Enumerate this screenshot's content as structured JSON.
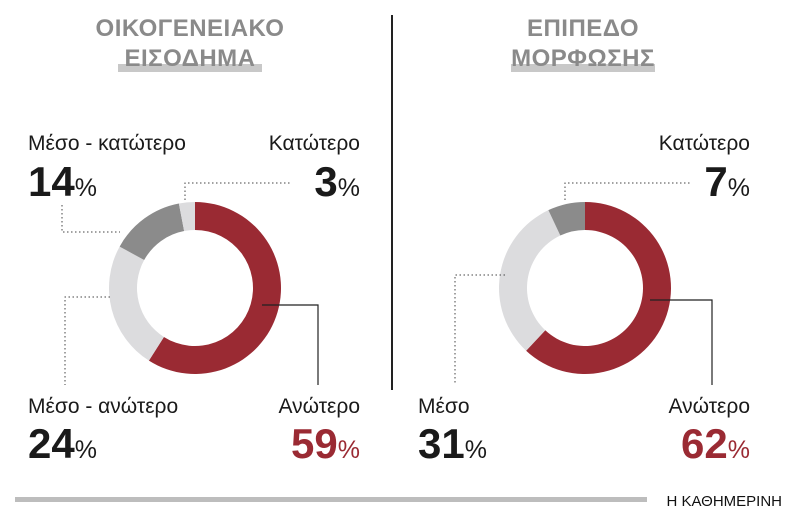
{
  "chart_data": [
    {
      "type": "pie",
      "donut": true,
      "title": [
        "ΟΙΚΟΓΕΝΕΙΑΚΟ",
        "ΕΙΣΟΔΗΜΑ"
      ],
      "unit": "%",
      "categories": [
        "Ανώτερο",
        "Μέσο - ανώτερο",
        "Μέσο - κατώτερο",
        "Κατώτερο"
      ],
      "values": [
        59,
        24,
        14,
        3
      ],
      "colors": [
        "#9a2a33",
        "#dcdcde",
        "#8b8b8b",
        "#dcdcde"
      ]
    },
    {
      "type": "pie",
      "donut": true,
      "title": [
        "ΕΠΙΠΕΔΟ",
        "ΜΟΡΦΩΣΗΣ"
      ],
      "unit": "%",
      "categories": [
        "Ανώτερο",
        "Μέσο",
        "Κατώτερο"
      ],
      "values": [
        62,
        31,
        7
      ],
      "colors": [
        "#9a2a33",
        "#dcdcde",
        "#8b8b8b"
      ]
    }
  ],
  "footer": "Η ΚΑΘΗΜΕΡΙΝΗ"
}
